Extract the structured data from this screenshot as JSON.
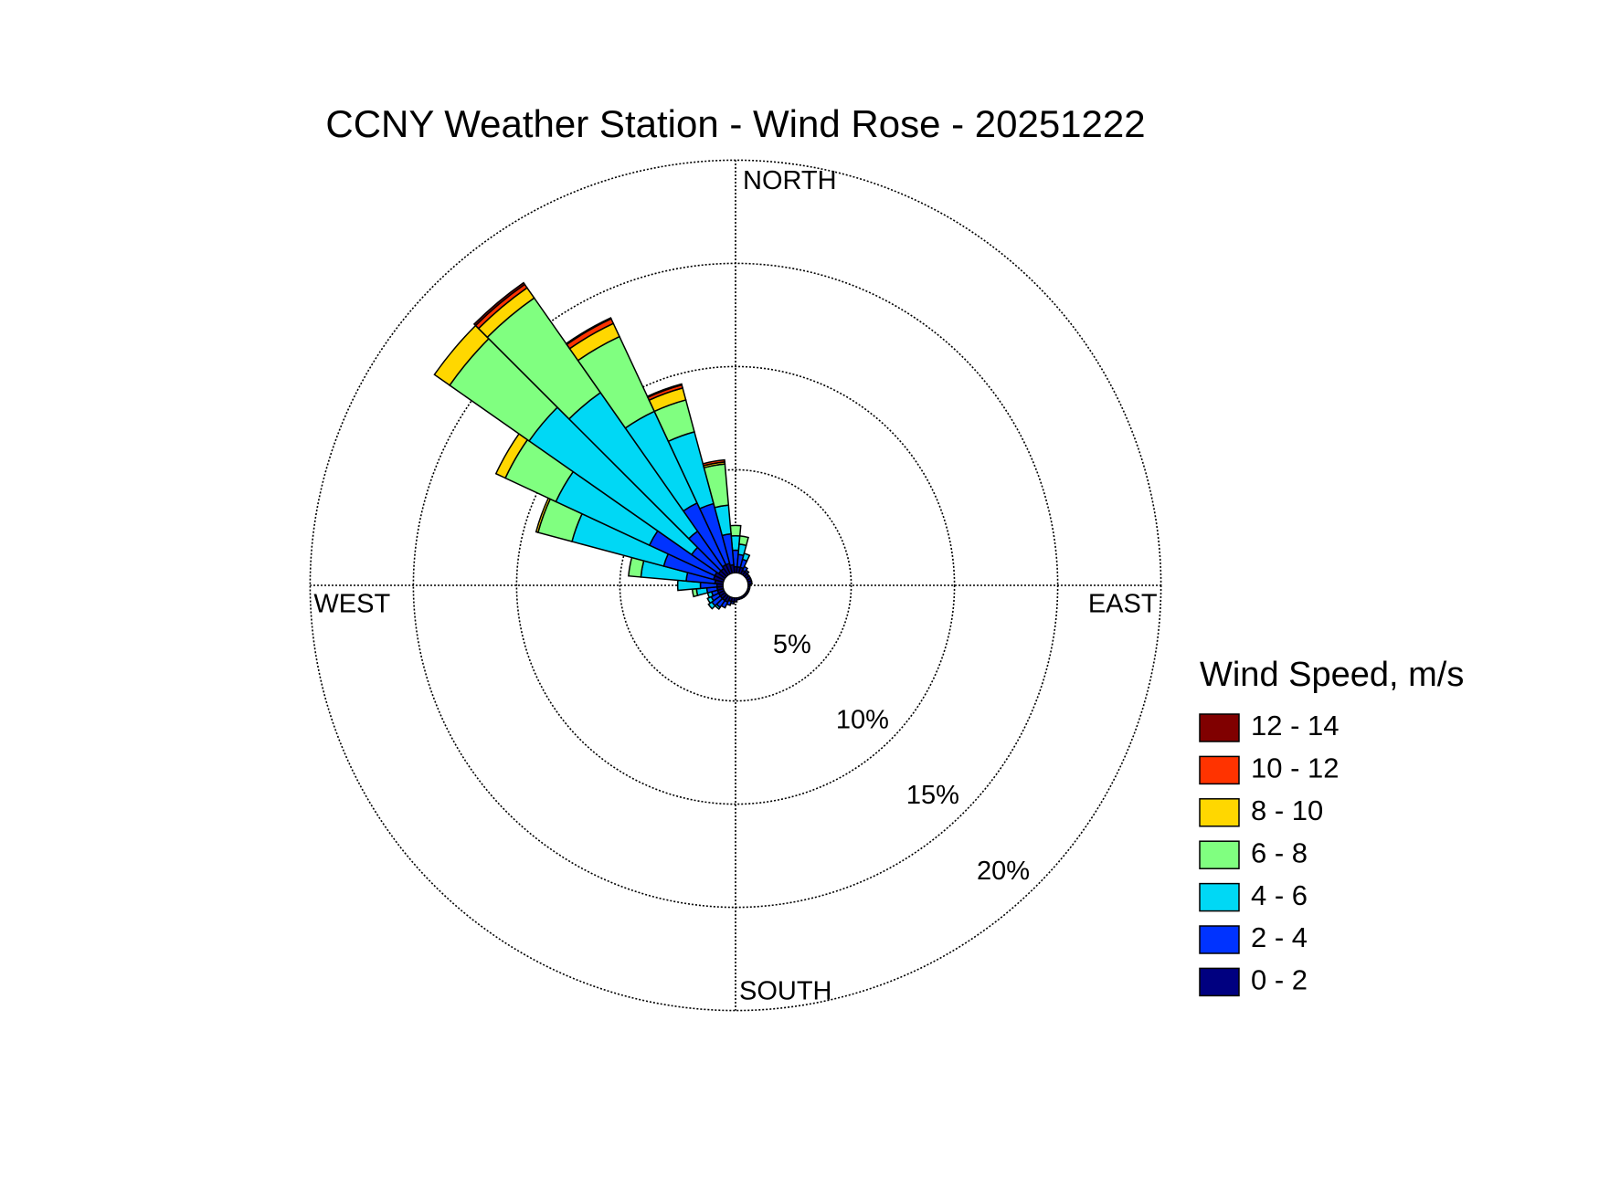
{
  "chart_data": {
    "type": "windrose",
    "title": "CCNY Weather Station - Wind Rose - 20251222",
    "legend_title": "Wind Speed, m/s",
    "x": [
      0,
      10,
      20,
      30,
      40,
      50,
      60,
      70,
      80,
      90,
      100,
      110,
      120,
      130,
      140,
      150,
      160,
      170,
      180,
      190,
      200,
      210,
      220,
      230,
      240,
      250,
      260,
      270,
      280,
      290,
      300,
      310,
      320,
      330,
      340,
      350
    ],
    "xlim": [
      0,
      360
    ],
    "xticks": [
      {
        "value": 0,
        "label": "NORTH"
      },
      {
        "value": 90,
        "label": "EAST"
      },
      {
        "value": 180,
        "label": "SOUTH"
      },
      {
        "value": 270,
        "label": "WEST"
      }
    ],
    "ylim": [
      0,
      20
    ],
    "yticks": [
      {
        "value": 5,
        "label": "5%"
      },
      {
        "value": 10,
        "label": "10%"
      },
      {
        "value": 15,
        "label": "15%"
      },
      {
        "value": 20,
        "label": "20%"
      }
    ],
    "grid": true,
    "series": [
      {
        "name": "0 - 2",
        "color": "#000080",
        "values": [
          0.3,
          0.3,
          0.3,
          0.2,
          0.2,
          0.2,
          0.2,
          0.2,
          0.2,
          0.1,
          0.1,
          0.1,
          0.1,
          0.1,
          0.1,
          0.1,
          0.1,
          0.1,
          0.2,
          0.2,
          0.2,
          0.3,
          0.3,
          0.3,
          0.3,
          0.3,
          0.3,
          0.3,
          0.4,
          0.5,
          0.5,
          0.4,
          0.4,
          0.5,
          0.5,
          0.4
        ]
      },
      {
        "name": "2 - 4",
        "color": "#0033ff",
        "values": [
          0.8,
          0.6,
          0.4,
          0.2,
          0.1,
          0,
          0,
          0,
          0,
          0,
          0,
          0,
          0,
          0,
          0,
          0,
          0,
          0,
          0,
          0.1,
          0.2,
          0.3,
          0.4,
          0.5,
          0.4,
          0.3,
          0.5,
          0.8,
          1.4,
          2.5,
          3.5,
          1.6,
          2.2,
          3.3,
          3.0,
          1.5
        ]
      },
      {
        "name": "4 - 6",
        "color": "#00d8f5",
        "values": [
          0.7,
          0.5,
          0.3,
          0,
          0,
          0,
          0,
          0,
          0,
          0,
          0,
          0,
          0,
          0,
          0,
          0,
          0,
          0,
          0,
          0,
          0,
          0,
          0.1,
          0.2,
          0.2,
          0.2,
          0.5,
          1.1,
          2.2,
          4.6,
          5.0,
          9.6,
          8.2,
          4.9,
          3.6,
          1.4
        ]
      },
      {
        "name": "6 - 8",
        "color": "#80ff80",
        "values": [
          0.5,
          0.4,
          0,
          0,
          0,
          0,
          0,
          0,
          0,
          0,
          0,
          0,
          0,
          0,
          0,
          0,
          0,
          0,
          0,
          0,
          0,
          0,
          0,
          0,
          0,
          0,
          0.2,
          0,
          0.6,
          1.7,
          2.7,
          4.7,
          5.6,
          4.0,
          1.6,
          2.0
        ]
      },
      {
        "name": "8 - 10",
        "color": "#ffd700",
        "values": [
          0,
          0,
          0,
          0,
          0,
          0,
          0,
          0,
          0,
          0,
          0,
          0,
          0,
          0,
          0,
          0,
          0,
          0,
          0,
          0,
          0,
          0,
          0,
          0,
          0,
          0,
          0,
          0,
          0,
          0.1,
          0.5,
          0.9,
          0.6,
          0.7,
          0.6,
          0.1
        ]
      },
      {
        "name": "10 - 12",
        "color": "#ff3300",
        "values": [
          0,
          0,
          0,
          0,
          0,
          0,
          0,
          0,
          0,
          0,
          0,
          0,
          0,
          0,
          0,
          0,
          0,
          0,
          0,
          0,
          0,
          0,
          0,
          0,
          0,
          0,
          0,
          0,
          0,
          0,
          0,
          0,
          0.2,
          0.25,
          0.15,
          0.1
        ]
      },
      {
        "name": "12 - 14",
        "color": "#800000",
        "values": [
          0,
          0,
          0,
          0,
          0,
          0,
          0,
          0,
          0,
          0,
          0,
          0,
          0,
          0,
          0,
          0,
          0,
          0,
          0,
          0,
          0,
          0,
          0,
          0,
          0,
          0,
          0,
          0,
          0,
          0,
          0,
          0,
          0.1,
          0.05,
          0.05,
          0
        ]
      }
    ]
  }
}
